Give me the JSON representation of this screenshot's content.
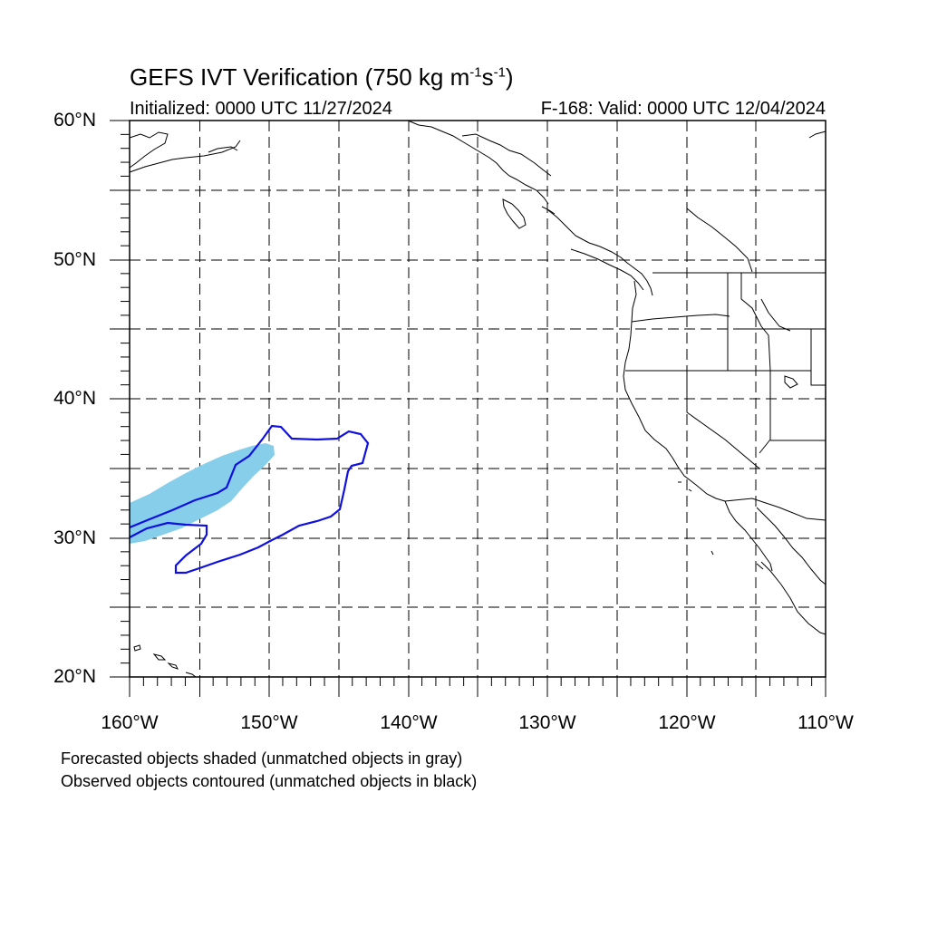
{
  "title": {
    "prefix": "GEFS IVT Verification (750 kg m",
    "sup1": "-1",
    "mid": "s",
    "sup2": "-1",
    "suffix": ")"
  },
  "initialized": "Initialized: 0000 UTC 11/27/2024",
  "valid": "F-168: Valid: 0000 UTC 12/04/2024",
  "lat_labels": [
    "60°N",
    "50°N",
    "40°N",
    "30°N",
    "20°N"
  ],
  "lon_labels": [
    "160°W",
    "150°W",
    "140°W",
    "130°W",
    "120°W",
    "110°W"
  ],
  "footnotes": [
    "Forecasted objects shaded (unmatched objects in gray)",
    "Observed objects contoured (unmatched objects in black)"
  ],
  "colors": {
    "forecast_fill": "#87ceeb",
    "observed_contour": "#1010e0",
    "coastline": "#000000",
    "grid": "#000000"
  },
  "map_extent": {
    "lon": [
      -160,
      -110
    ],
    "lat": [
      20,
      60
    ]
  }
}
